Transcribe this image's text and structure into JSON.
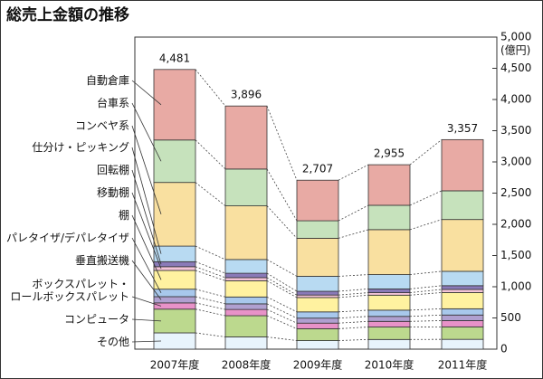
{
  "chart_data": {
    "type": "stacked_bar",
    "title": "総売上金額の推移",
    "y_label": "(億円)",
    "categories": [
      "2007年度",
      "2008年度",
      "2009年度",
      "2010年度",
      "2011年度"
    ],
    "series": [
      {
        "name": "その他",
        "color": "#e8f4fc",
        "values": [
          261,
          196,
          137,
          155,
          157
        ]
      },
      {
        "name": "コンピュータ",
        "color": "#bcd98e",
        "values": [
          380,
          340,
          190,
          200,
          200
        ]
      },
      {
        "name": "ボックスパレット・\nロールボックスパレット",
        "color": "#e892c8",
        "values": [
          100,
          100,
          90,
          90,
          100
        ]
      },
      {
        "name": "垂直搬送機",
        "color": "#b0a0d0",
        "values": [
          100,
          90,
          80,
          80,
          90
        ]
      },
      {
        "name": "パレタイザ/デパレタイザ",
        "color": "#a8c8ec",
        "values": [
          120,
          110,
          100,
          100,
          100
        ]
      },
      {
        "name": "棚",
        "color": "#fff2a0",
        "values": [
          300,
          260,
          230,
          240,
          260
        ]
      },
      {
        "name": "移動棚",
        "color": "#f4c4d8",
        "values": [
          60,
          50,
          40,
          40,
          50
        ]
      },
      {
        "name": "回転棚",
        "color": "#8a7ab8",
        "values": [
          80,
          70,
          60,
          60,
          60
        ]
      },
      {
        "name": "仕分け・ピッキング",
        "color": "#b8daf2",
        "values": [
          250,
          220,
          240,
          230,
          230
        ]
      },
      {
        "name": "コンベヤ系",
        "color": "#f9e0a0",
        "values": [
          1020,
          860,
          610,
          720,
          830
        ]
      },
      {
        "name": "台車系",
        "color": "#c6e2bc",
        "values": [
          680,
          590,
          280,
          390,
          460
        ]
      },
      {
        "name": "自動倉庫",
        "color": "#e8aaa4",
        "values": [
          1130,
          1010,
          650,
          650,
          820
        ]
      }
    ],
    "totals": [
      4481,
      3896,
      2707,
      2955,
      3357
    ],
    "value_labels": [
      "4,481",
      "3,896",
      "2,707",
      "2,955",
      "3,357"
    ],
    "ylim": [
      0,
      5000
    ],
    "yticks": [
      0,
      500,
      {
        "value": 1000,
        "label": "1,000"
      },
      {
        "value": 1500,
        "label": "1,500"
      },
      {
        "value": 2000,
        "label": "2,000"
      },
      {
        "value": 2500,
        "label": "2,500"
      },
      {
        "value": 3000,
        "label": "3,000"
      },
      {
        "value": 3500,
        "label": "3,500"
      },
      {
        "value": 4000,
        "label": "4,000"
      },
      {
        "value": 4500,
        "label": "4,500"
      },
      {
        "value": 5000,
        "label": "5,000"
      }
    ]
  }
}
